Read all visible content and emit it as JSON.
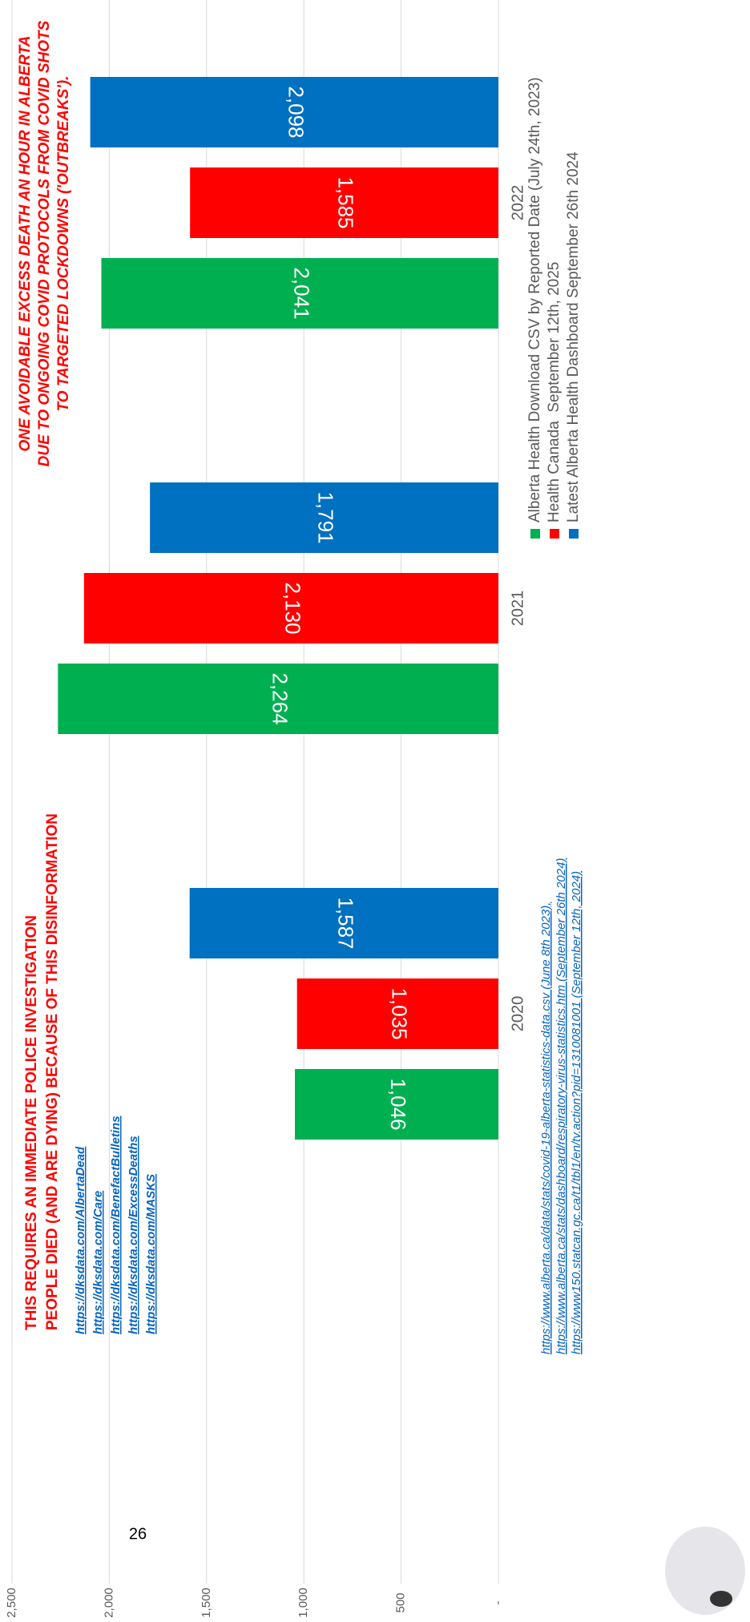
{
  "chart_data": {
    "type": "bar",
    "title_lines": [
      "THIS REQUIRES AN IMMEDIATE POLICE INVESTIGATION",
      "PEOPLE DIED (AND ARE DYING) BECAUSE OF THIS DISINFORMATION"
    ],
    "annotations": [
      "ONE AVOIDABLE EXCESS DEATH AN HOUR IN ALBERTA",
      "DUE TO ONGOING COVID PROTOCOLS FROM COVID SHOTS",
      "TO TARGETED LOCKDOWNS ('OUTBREAKS')."
    ],
    "links": [
      "https://dksdata.com/AlbertaDead",
      "https://dksdata.com/Care",
      "https://dksdata.com/BenefactBulletins",
      "https://dksdata.com/ExcessDeaths",
      "https://dksdata.com/MASKS"
    ],
    "sources": [
      "https://www.alberta.ca/data/stats/covid-19-alberta-statistics-data.csv (June 8th 2023),",
      "https://www.alberta.ca/stats/dashboard/respiratory-virus-statistics.htm (September 26th 2024)",
      "https://www150.statcan.gc.ca/t1/tbl1/en/tv.action?pid=1310081001 (September 12th, 2024)"
    ],
    "categories": [
      "2020",
      "2021",
      "2022"
    ],
    "series": [
      {
        "name": "Alberta Health Download CSV by Reported Date (July 24th, 2023)",
        "color": "#00b050",
        "values": [
          1046,
          2264,
          2041
        ],
        "value_labels": [
          "1,046",
          "2,264",
          "2,041"
        ]
      },
      {
        "name": "Health Canada  September 12th, 2025",
        "color": "#ff0000",
        "values": [
          1035,
          2130,
          1585
        ],
        "value_labels": [
          "1,035",
          "2,130",
          "1,585"
        ]
      },
      {
        "name": "Latest Alberta Health Dashboard September 26th 2024",
        "color": "#0070c0",
        "values": [
          1587,
          1791,
          2098
        ],
        "value_labels": [
          "1,587",
          "1,791",
          "2,098"
        ]
      }
    ],
    "ylim": [
      0,
      2500
    ],
    "yticks": [
      {
        "value": 0,
        "label": "-"
      },
      500,
      {
        "value": 1000,
        "label": "1,000"
      },
      {
        "value": 1500,
        "label": "1,500"
      },
      {
        "value": 2000,
        "label": "2,000"
      },
      {
        "value": 2500,
        "label": "2,500"
      }
    ],
    "grid": true
  },
  "page_number": "26"
}
